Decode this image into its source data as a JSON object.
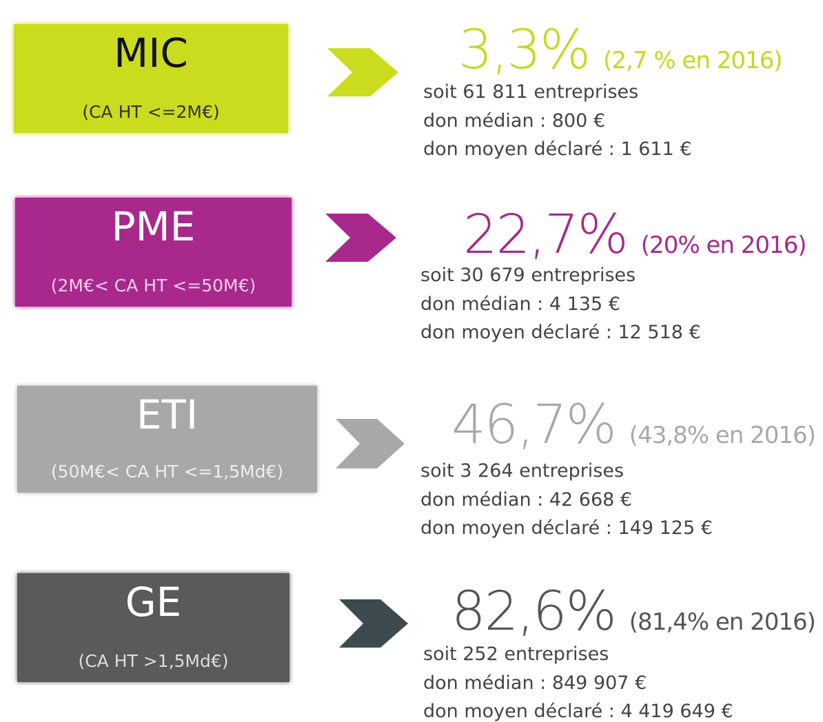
{
  "items": [
    {
      "name": "MIC",
      "range": "(CA HT <=2M€)",
      "share": "3,3%",
      "previous": "(2,7 % en 2016)",
      "lines": [
        "soit 61 811 entreprises",
        "don médian : 800 €",
        "don moyen déclaré : 1 611 €"
      ]
    },
    {
      "name": "PME",
      "range": "(2M€< CA HT <=50M€)",
      "share": "22,7%",
      "previous": "(20% en 2016)",
      "lines": [
        "soit 30 679 entreprises",
        "don médian : 4 135 €",
        "don moyen déclaré : 12 518 €"
      ]
    },
    {
      "name": "ETI",
      "range": "(50M€< CA HT <=1,5Md€)",
      "share": "46,7%",
      "previous": "(43,8% en 2016)",
      "lines": [
        "soit 3 264 entreprises",
        "don médian : 42 668 €",
        "don moyen déclaré : 149 125 €"
      ]
    },
    {
      "name": "GE",
      "range": "(CA HT >1,5Md€)",
      "share": "82,6%",
      "previous": "(81,4% en 2016)",
      "lines": [
        "soit 252 entreprises",
        "don médian : 849 907 €",
        "don moyen déclaré : 4 419 649 €"
      ]
    }
  ]
}
